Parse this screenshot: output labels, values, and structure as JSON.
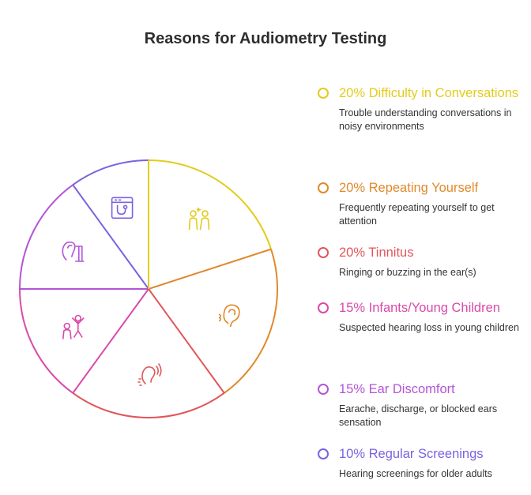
{
  "chart_data": {
    "type": "pie",
    "title": "Reasons for Audiometry Testing",
    "segments": [
      {
        "name": "Difficulty in Conversations",
        "label": "20% Difficulty in Conversations",
        "value": 20,
        "description": "Trouble understanding conversations in noisy environments",
        "color": "#e2cc1c",
        "icon": "people-talking-icon"
      },
      {
        "name": "Repeating Yourself",
        "label": "20% Repeating Yourself",
        "value": 20,
        "description": "Frequently repeating yourself to get attention",
        "color": "#df8a2c",
        "icon": "ear-sound-icon"
      },
      {
        "name": "Tinnitus",
        "label": "20% Tinnitus",
        "value": 20,
        "description": "Ringing or buzzing in the ear(s)",
        "color": "#e0565a",
        "icon": "ringing-ear-icon"
      },
      {
        "name": "Infants/Young Children",
        "label": "15% Infants/Young Children",
        "value": 15,
        "description": "Suspected hearing loss in young children",
        "color": "#d94aa8",
        "icon": "children-playing-icon"
      },
      {
        "name": "Ear Discomfort",
        "label": "15% Ear Discomfort",
        "value": 15,
        "description": "Earache, discharge, or blocked ears sensation",
        "color": "#b455d6",
        "icon": "ear-exam-icon"
      },
      {
        "name": "Regular Screenings",
        "label": "10% Regular Screenings",
        "value": 10,
        "description": "Hearing screenings for older adults",
        "color": "#7b62e0",
        "icon": "stethoscope-screen-icon"
      }
    ]
  }
}
